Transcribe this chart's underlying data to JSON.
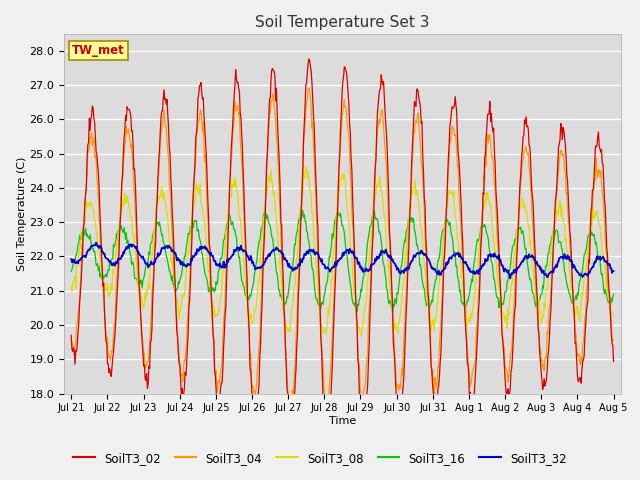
{
  "title": "Soil Temperature Set 3",
  "xlabel": "Time",
  "ylabel": "Soil Temperature (C)",
  "ylim": [
    18.0,
    28.5
  ],
  "yticks": [
    18.0,
    19.0,
    20.0,
    21.0,
    22.0,
    23.0,
    24.0,
    25.0,
    26.0,
    27.0,
    28.0
  ],
  "series_colors": {
    "SoilT3_02": "#dd0000",
    "SoilT3_04": "#ff9900",
    "SoilT3_08": "#dddd00",
    "SoilT3_16": "#00cc00",
    "SoilT3_32": "#0000cc"
  },
  "annotation": "TW_met",
  "plot_bg": "#dcdcdc",
  "legend_bg": "#ffff99",
  "x_tick_labels": [
    "Jul 21",
    "Jul 22",
    "Jul 23",
    "Jul 24",
    "Jul 25",
    "Jul 26",
    "Jul 27",
    "Jul 28",
    "Jul 29",
    "Jul 30",
    "Jul 31",
    "Aug 1",
    "Aug 2",
    "Aug 3",
    "Aug 4",
    "Aug 5"
  ],
  "num_days": 16
}
